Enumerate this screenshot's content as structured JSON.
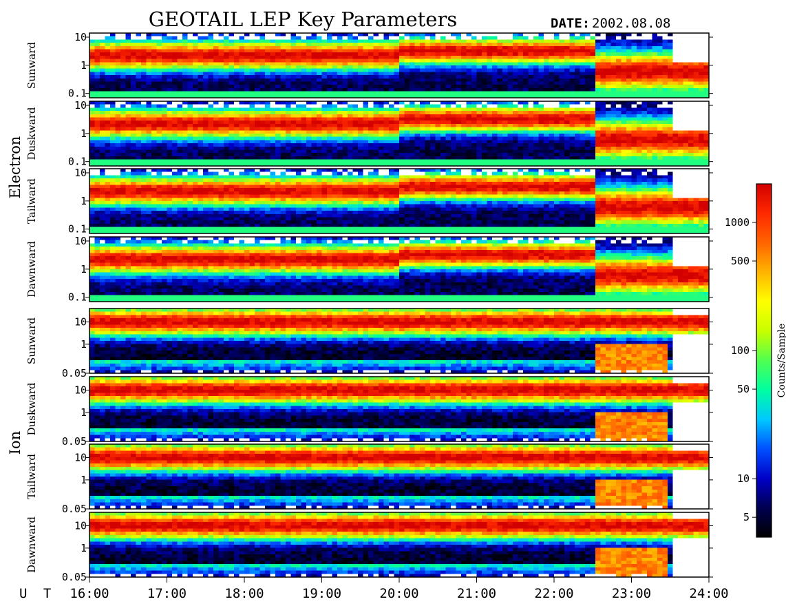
{
  "header": {
    "title": "GEOTAIL LEP Key Parameters",
    "date_label": "DATE:",
    "date_value": "2002.08.08"
  },
  "chart_data": {
    "type": "heatmap",
    "title": "GEOTAIL LEP Key Parameters",
    "x_axis": {
      "label": "U T",
      "ticks": [
        "16:00",
        "17:00",
        "18:00",
        "19:00",
        "20:00",
        "21:00",
        "22:00",
        "23:00",
        "24:00"
      ],
      "range_hours": [
        16,
        24
      ]
    },
    "groups": [
      {
        "name": "Electron",
        "y_scale": "log",
        "y_range": [
          0.07,
          14
        ],
        "y_ticks": [
          "10",
          "1",
          "0.1"
        ],
        "panels": [
          {
            "name": "Sunward"
          },
          {
            "name": "Duskward"
          },
          {
            "name": "Tailward"
          },
          {
            "name": "Dawnward"
          }
        ]
      },
      {
        "name": "Ion",
        "y_scale": "log",
        "y_range": [
          0.05,
          40
        ],
        "y_ticks": [
          "10",
          "1",
          "0.05"
        ],
        "panels": [
          {
            "name": "Sunward"
          },
          {
            "name": "Duskward"
          },
          {
            "name": "Tailward"
          },
          {
            "name": "Dawnward"
          }
        ]
      }
    ],
    "colorbar": {
      "label": "Counts/Sample",
      "scale": "log",
      "range": [
        3.5,
        2000
      ],
      "ticks": [
        "1000",
        "500",
        "100",
        "50",
        "10",
        "5"
      ],
      "colors": [
        "#000000",
        "#000050",
        "#0000c8",
        "#0050ff",
        "#00c8ff",
        "#00ffa0",
        "#50ff50",
        "#c8ff00",
        "#ffff00",
        "#ffb400",
        "#ff6400",
        "#ff2800",
        "#d20000"
      ]
    }
  }
}
